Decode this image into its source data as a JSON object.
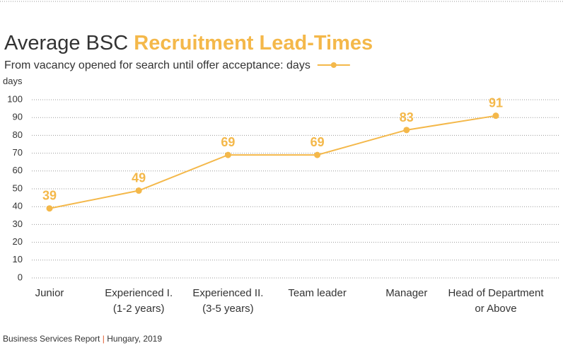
{
  "chart_data": {
    "type": "line",
    "title": "Average BSC",
    "title_highlight": "Recruitment Lead-Times",
    "y_label": "days",
    "categories": [
      [
        "Junior"
      ],
      [
        "Experienced I.",
        "(1-2 years)"
      ],
      [
        "Experienced II.",
        "(3-5 years)"
      ],
      [
        "Team leader"
      ],
      [
        "Manager"
      ],
      [
        "Head of Department",
        "or Above"
      ]
    ],
    "series": [
      {
        "name": "From vacancy opened for search until offer acceptance: days",
        "color": "#f4b84a",
        "values": [
          39,
          49,
          69,
          69,
          83,
          91
        ]
      }
    ],
    "ylim": [
      0,
      100
    ],
    "yticks": [
      0,
      10,
      20,
      30,
      40,
      50,
      60,
      70,
      80,
      90,
      100
    ],
    "grid": true,
    "source": "Business Services Report",
    "source_separator": "|",
    "source_place": "Hungary, 2019"
  }
}
